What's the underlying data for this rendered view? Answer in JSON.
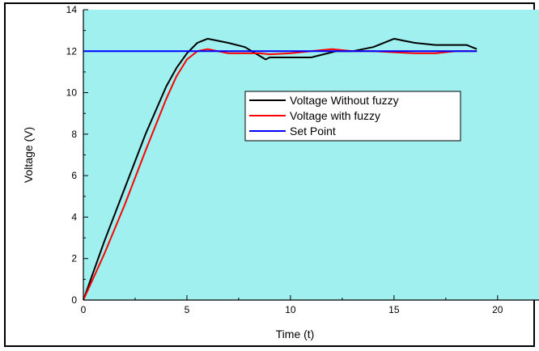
{
  "chart_data": {
    "type": "line",
    "title": "",
    "xlabel": "Time (t)",
    "ylabel": "Voltage (V)",
    "xlim": [
      0,
      22
    ],
    "ylim": [
      0,
      14
    ],
    "x_ticks": [
      0,
      5,
      10,
      15,
      20
    ],
    "y_ticks": [
      0,
      2,
      4,
      6,
      8,
      10,
      12,
      14
    ],
    "grid": false,
    "legend_position": "center-right",
    "plot_background": "#a0f0f0",
    "series": [
      {
        "name": "Voltage Without fuzzy",
        "color": "#000000",
        "x": [
          0,
          1,
          2,
          3,
          4,
          4.5,
          5,
          5.5,
          6,
          7,
          7.8,
          8.3,
          8.8,
          9,
          9.5,
          10,
          11,
          11.8,
          12.2,
          13,
          14,
          15,
          15.5,
          16,
          17,
          18,
          18.5,
          19
        ],
        "y": [
          0,
          2.8,
          5.4,
          8,
          10.3,
          11.2,
          11.9,
          12.4,
          12.6,
          12.4,
          12.2,
          11.9,
          11.6,
          11.7,
          11.7,
          11.7,
          11.7,
          11.9,
          12.0,
          12.0,
          12.2,
          12.6,
          12.5,
          12.4,
          12.3,
          12.3,
          12.3,
          12.1
        ]
      },
      {
        "name": "Voltage with fuzzy",
        "color": "#ff0000",
        "x": [
          0,
          1,
          2,
          3,
          4,
          4.5,
          5,
          5.5,
          6,
          6.5,
          7,
          8,
          8.5,
          9,
          10,
          11,
          12,
          12.5,
          13,
          14,
          15,
          16,
          17,
          18,
          19
        ],
        "y": [
          0,
          2.2,
          4.6,
          7.2,
          9.7,
          10.8,
          11.6,
          12.0,
          12.1,
          12.0,
          11.9,
          11.9,
          11.9,
          11.85,
          11.9,
          12.0,
          12.1,
          12.05,
          12.0,
          12.0,
          11.95,
          11.9,
          11.9,
          12.0,
          12.0
        ]
      },
      {
        "name": "Set Point",
        "color": "#0000ff",
        "x": [
          0,
          19
        ],
        "y": [
          12,
          12
        ]
      }
    ]
  }
}
